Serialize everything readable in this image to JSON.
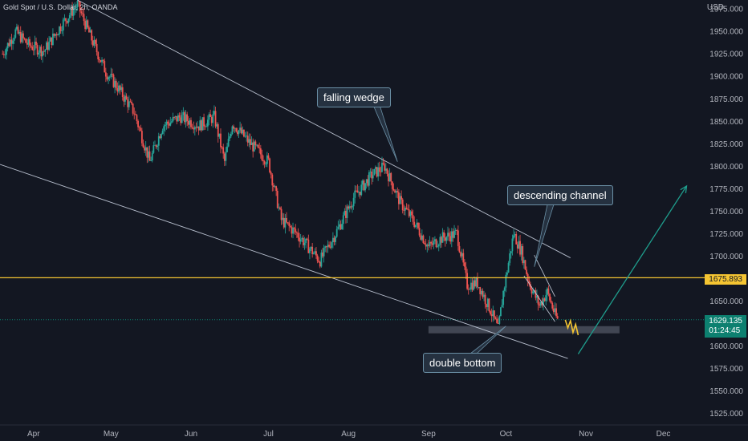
{
  "header": {
    "symbol": "Gold Spot / U.S. Dollar, 2h, OANDA",
    "currency": "USD"
  },
  "chart_data": {
    "type": "candlestick",
    "ylim": [
      1512,
      1985
    ],
    "y_ticks": [
      {
        "value": 1975,
        "label": "1975.000"
      },
      {
        "value": 1950,
        "label": "1950.000"
      },
      {
        "value": 1925,
        "label": "1925.000"
      },
      {
        "value": 1900,
        "label": "1900.000"
      },
      {
        "value": 1875,
        "label": "1875.000"
      },
      {
        "value": 1850,
        "label": "1850.000"
      },
      {
        "value": 1825,
        "label": "1825.000"
      },
      {
        "value": 1800,
        "label": "1800.000"
      },
      {
        "value": 1775,
        "label": "1775.000"
      },
      {
        "value": 1750,
        "label": "1750.000"
      },
      {
        "value": 1725,
        "label": "1725.000"
      },
      {
        "value": 1700,
        "label": "1700.000"
      },
      {
        "value": 1650,
        "label": "1650.000"
      },
      {
        "value": 1600,
        "label": "1600.000"
      },
      {
        "value": 1575,
        "label": "1575.000"
      },
      {
        "value": 1550,
        "label": "1550.000"
      },
      {
        "value": 1525,
        "label": "1525.000"
      }
    ],
    "x_ticks": [
      {
        "label": "Apr",
        "date": "2022-04-01"
      },
      {
        "label": "May",
        "date": "2022-05-01"
      },
      {
        "label": "Jun",
        "date": "2022-06-01"
      },
      {
        "label": "Jul",
        "date": "2022-07-01"
      },
      {
        "label": "Aug",
        "date": "2022-08-01"
      },
      {
        "label": "Sep",
        "date": "2022-09-01"
      },
      {
        "label": "Oct",
        "date": "2022-10-01"
      },
      {
        "label": "Nov",
        "date": "2022-11-01"
      },
      {
        "label": "Dec",
        "date": "2022-12-01"
      }
    ],
    "xlim": [
      "2022-03-19",
      "2022-12-17"
    ],
    "price_path": [
      [
        "2022-03-20",
        1925
      ],
      [
        "2022-03-25",
        1950
      ],
      [
        "2022-03-30",
        1935
      ],
      [
        "2022-04-05",
        1928
      ],
      [
        "2022-04-12",
        1958
      ],
      [
        "2022-04-18",
        1980
      ],
      [
        "2022-04-24",
        1938
      ],
      [
        "2022-04-29",
        1905
      ],
      [
        "2022-05-03",
        1890
      ],
      [
        "2022-05-10",
        1860
      ],
      [
        "2022-05-16",
        1805
      ],
      [
        "2022-05-21",
        1845
      ],
      [
        "2022-05-28",
        1855
      ],
      [
        "2022-06-04",
        1845
      ],
      [
        "2022-06-10",
        1855
      ],
      [
        "2022-06-14",
        1805
      ],
      [
        "2022-06-17",
        1848
      ],
      [
        "2022-06-24",
        1825
      ],
      [
        "2022-07-01",
        1805
      ],
      [
        "2022-07-06",
        1740
      ],
      [
        "2022-07-12",
        1725
      ],
      [
        "2022-07-21",
        1695
      ],
      [
        "2022-07-27",
        1725
      ],
      [
        "2022-08-03",
        1765
      ],
      [
        "2022-08-10",
        1790
      ],
      [
        "2022-08-15",
        1800
      ],
      [
        "2022-08-21",
        1760
      ],
      [
        "2022-08-26",
        1740
      ],
      [
        "2022-09-01",
        1710
      ],
      [
        "2022-09-06",
        1720
      ],
      [
        "2022-09-12",
        1725
      ],
      [
        "2022-09-16",
        1668
      ],
      [
        "2022-09-20",
        1670
      ],
      [
        "2022-09-25",
        1640
      ],
      [
        "2022-09-28",
        1618
      ],
      [
        "2022-09-30",
        1660
      ],
      [
        "2022-10-04",
        1725
      ],
      [
        "2022-10-07",
        1705
      ],
      [
        "2022-10-10",
        1670
      ],
      [
        "2022-10-14",
        1645
      ],
      [
        "2022-10-17",
        1660
      ],
      [
        "2022-10-20",
        1635
      ],
      [
        "2022-10-21",
        1629
      ]
    ],
    "projection": [
      [
        "2022-10-24",
        1629
      ],
      [
        "2022-10-25",
        1620
      ],
      [
        "2022-10-26",
        1628
      ],
      [
        "2022-10-27",
        1615
      ],
      [
        "2022-10-28",
        1624
      ],
      [
        "2022-10-29",
        1612
      ]
    ],
    "trendlines": [
      {
        "name": "wedge-upper",
        "from": [
          "2022-04-18",
          1985
        ],
        "to": [
          "2022-10-26",
          1698
        ]
      },
      {
        "name": "wedge-lower",
        "from": [
          "2022-03-19",
          1802
        ],
        "to": [
          "2022-10-25",
          1586
        ]
      },
      {
        "name": "channel-upper",
        "from": [
          "2022-10-12",
          1701
        ],
        "to": [
          "2022-10-20",
          1655
        ]
      },
      {
        "name": "channel-lower",
        "from": [
          "2022-10-08",
          1678
        ],
        "to": [
          "2022-10-20",
          1627
        ]
      }
    ],
    "horizontal_level": {
      "value": 1675.893,
      "label": "1675.893"
    },
    "current_price": {
      "value": 1629.135,
      "label": "1629.135",
      "countdown": "01:24:45"
    },
    "support_zone": {
      "from": "2022-09-01",
      "to": "2022-11-14",
      "low": 1614,
      "high": 1622
    },
    "target_arrow": {
      "from": [
        "2022-10-29",
        1591
      ],
      "to": [
        "2022-12-10",
        1778
      ]
    },
    "callouts": [
      {
        "text": "falling wedge",
        "pointer_to": [
          "2022-08-20",
          1805
        ]
      },
      {
        "text": "descending channel",
        "pointer_to": [
          "2022-10-12",
          1688
        ]
      },
      {
        "text": "double bottom",
        "pointer_to": [
          "2022-10-01",
          1622
        ]
      }
    ],
    "colors": {
      "up": "#26a69a",
      "down": "#ef5350",
      "level": "#f5c532",
      "line": "#c9d1e0",
      "arrow": "#1f9e8d"
    }
  }
}
